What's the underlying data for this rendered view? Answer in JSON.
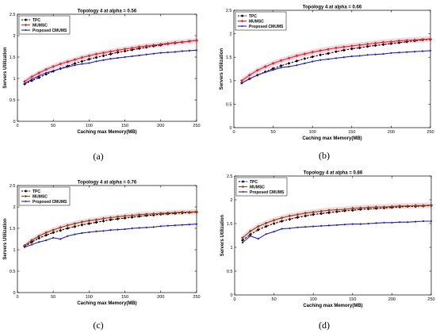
{
  "colors": {
    "TPC": "#000000",
    "MUMSC_red": "#e8202a",
    "MUMSC_brown": "#8b4513",
    "CMUMS": "#1f1fbf",
    "band": "#f2b8c6"
  },
  "chart_data": [
    {
      "type": "line",
      "title": "Topology 4 at alpha = 0.56",
      "xlabel": "Caching max Memory(MB)",
      "ylabel": "Servers Utilization",
      "caption": "(a)",
      "xlim": [
        0,
        250
      ],
      "ylim": [
        0,
        2.5
      ],
      "xticks": [
        0,
        50,
        100,
        150,
        200,
        250
      ],
      "yticks": [
        0,
        0.5,
        1,
        1.5,
        2,
        2.5
      ],
      "grid": false,
      "legend": "top-left",
      "x": [
        10,
        20,
        30,
        40,
        50,
        60,
        70,
        80,
        90,
        100,
        110,
        120,
        130,
        140,
        150,
        160,
        170,
        180,
        190,
        200,
        210,
        220,
        230,
        240,
        250
      ],
      "series": [
        {
          "name": "TPC",
          "color_key": "TPC",
          "marker": "diamond",
          "dashed": true,
          "values": [
            0.87,
            0.95,
            1.02,
            1.1,
            1.17,
            1.23,
            1.29,
            1.35,
            1.4,
            1.45,
            1.49,
            1.53,
            1.57,
            1.61,
            1.64,
            1.67,
            1.7,
            1.73,
            1.76,
            1.78,
            1.81,
            1.83,
            1.85,
            1.87,
            1.89
          ]
        },
        {
          "name": "MUMSC",
          "color_key": "MUMSC_red",
          "marker": "diamond",
          "dashed": false,
          "values": [
            0.93,
            1.04,
            1.13,
            1.21,
            1.28,
            1.34,
            1.39,
            1.44,
            1.49,
            1.53,
            1.57,
            1.6,
            1.63,
            1.66,
            1.69,
            1.71,
            1.74,
            1.76,
            1.78,
            1.8,
            1.82,
            1.84,
            1.85,
            1.87,
            1.89
          ]
        },
        {
          "name": "Proposed CMUMS",
          "color_key": "CMUMS",
          "marker": "dot",
          "dashed": false,
          "values": [
            0.88,
            0.98,
            1.06,
            1.13,
            1.18,
            1.23,
            1.27,
            1.31,
            1.34,
            1.36,
            1.4,
            1.43,
            1.46,
            1.48,
            1.5,
            1.52,
            1.54,
            1.56,
            1.58,
            1.6,
            1.61,
            1.62,
            1.64,
            1.65,
            1.66
          ]
        }
      ]
    },
    {
      "type": "line",
      "title": "Topology 4 at alpha = 0.66",
      "xlabel": "Caching max Memory(MB)",
      "ylabel": "Servers Utilization",
      "caption": "(b)",
      "xlim": [
        0,
        250
      ],
      "ylim": [
        0,
        2.5
      ],
      "xticks": [
        0,
        50,
        100,
        150,
        200,
        250
      ],
      "yticks": [
        0,
        0.5,
        1,
        1.5,
        2,
        2.5
      ],
      "grid": false,
      "legend": "top-left",
      "x": [
        10,
        20,
        30,
        40,
        50,
        60,
        70,
        80,
        90,
        100,
        110,
        120,
        130,
        140,
        150,
        160,
        170,
        180,
        190,
        200,
        210,
        220,
        230,
        240,
        250
      ],
      "series": [
        {
          "name": "TPC",
          "color_key": "TPC",
          "marker": "diamond",
          "dashed": true,
          "values": [
            0.95,
            1.04,
            1.12,
            1.19,
            1.26,
            1.32,
            1.37,
            1.42,
            1.47,
            1.51,
            1.55,
            1.58,
            1.62,
            1.65,
            1.68,
            1.7,
            1.73,
            1.75,
            1.77,
            1.79,
            1.81,
            1.83,
            1.85,
            1.87,
            1.88
          ]
        },
        {
          "name": "MUMSC",
          "color_key": "MUMSC_red",
          "marker": "diamond",
          "dashed": false,
          "values": [
            1.0,
            1.12,
            1.22,
            1.3,
            1.37,
            1.43,
            1.48,
            1.53,
            1.57,
            1.61,
            1.64,
            1.67,
            1.7,
            1.72,
            1.74,
            1.76,
            1.78,
            1.8,
            1.82,
            1.83,
            1.85,
            1.86,
            1.87,
            1.88,
            1.89
          ]
        },
        {
          "name": "Proposed CMUMS",
          "color_key": "CMUMS",
          "marker": "dot",
          "dashed": false,
          "values": [
            0.95,
            1.04,
            1.12,
            1.18,
            1.23,
            1.28,
            1.3,
            1.33,
            1.37,
            1.41,
            1.44,
            1.46,
            1.48,
            1.5,
            1.52,
            1.53,
            1.55,
            1.56,
            1.57,
            1.59,
            1.6,
            1.61,
            1.62,
            1.63,
            1.64
          ]
        }
      ]
    },
    {
      "type": "line",
      "title": "Topology 4 at alpha = 0.76",
      "xlabel": "Caching max Memory(MB)",
      "ylabel": "Servers Utilization",
      "caption": "(c)",
      "xlim": [
        0,
        250
      ],
      "ylim": [
        0,
        2.5
      ],
      "xticks": [
        0,
        50,
        100,
        150,
        200,
        250
      ],
      "yticks": [
        0,
        0.5,
        1,
        1.5,
        2,
        2.5
      ],
      "grid": false,
      "legend": "top-left",
      "x": [
        10,
        20,
        30,
        40,
        50,
        60,
        70,
        80,
        90,
        100,
        110,
        120,
        130,
        140,
        150,
        160,
        170,
        180,
        190,
        200,
        210,
        220,
        230,
        240,
        250
      ],
      "series": [
        {
          "name": "TPC",
          "color_key": "TPC",
          "marker": "diamond",
          "dashed": true,
          "values": [
            1.08,
            1.18,
            1.27,
            1.34,
            1.4,
            1.45,
            1.5,
            1.54,
            1.58,
            1.61,
            1.64,
            1.67,
            1.7,
            1.72,
            1.74,
            1.76,
            1.78,
            1.8,
            1.81,
            1.83,
            1.84,
            1.85,
            1.86,
            1.87,
            1.88
          ]
        },
        {
          "name": "MUMSC",
          "color_key": "MUMSC_brown",
          "marker": "diamond",
          "dashed": false,
          "values": [
            1.1,
            1.22,
            1.32,
            1.4,
            1.46,
            1.52,
            1.57,
            1.61,
            1.65,
            1.68,
            1.7,
            1.73,
            1.75,
            1.77,
            1.79,
            1.8,
            1.82,
            1.83,
            1.84,
            1.85,
            1.86,
            1.87,
            1.88,
            1.88,
            1.89
          ]
        },
        {
          "name": "Proposed CMUMS",
          "color_key": "CMUMS",
          "marker": "dot",
          "dashed": false,
          "values": [
            1.06,
            1.12,
            1.18,
            1.22,
            1.28,
            1.25,
            1.32,
            1.36,
            1.39,
            1.41,
            1.43,
            1.44,
            1.46,
            1.47,
            1.48,
            1.5,
            1.51,
            1.52,
            1.53,
            1.55,
            1.56,
            1.57,
            1.58,
            1.59,
            1.6
          ]
        }
      ]
    },
    {
      "type": "line",
      "title": "Topology 4 at alpha = 0.86",
      "xlabel": "Caching max Memory(MB)",
      "ylabel": "Servers Utilization",
      "caption": "(d)",
      "xlim": [
        0,
        250
      ],
      "ylim": [
        0,
        2.5
      ],
      "xticks": [
        0,
        50,
        100,
        150,
        200,
        250
      ],
      "yticks": [
        0,
        0.5,
        1,
        1.5,
        2,
        2.5
      ],
      "grid": false,
      "legend": "top-left",
      "x": [
        10,
        20,
        30,
        40,
        50,
        60,
        70,
        80,
        90,
        100,
        110,
        120,
        130,
        140,
        150,
        160,
        170,
        180,
        190,
        200,
        210,
        220,
        230,
        240,
        250
      ],
      "series": [
        {
          "name": "TPC",
          "color_key": "TPC",
          "marker": "diamond",
          "dashed": true,
          "values": [
            1.15,
            1.27,
            1.37,
            1.44,
            1.5,
            1.55,
            1.59,
            1.63,
            1.66,
            1.69,
            1.71,
            1.73,
            1.75,
            1.77,
            1.78,
            1.8,
            1.81,
            1.82,
            1.83,
            1.84,
            1.85,
            1.86,
            1.86,
            1.87,
            1.88
          ]
        },
        {
          "name": "MUMSC",
          "color_key": "MUMSC_brown",
          "marker": "diamond",
          "dashed": false,
          "values": [
            1.2,
            1.34,
            1.44,
            1.51,
            1.57,
            1.62,
            1.66,
            1.69,
            1.72,
            1.74,
            1.76,
            1.78,
            1.79,
            1.8,
            1.82,
            1.83,
            1.84,
            1.85,
            1.85,
            1.86,
            1.87,
            1.87,
            1.88,
            1.88,
            1.89
          ]
        },
        {
          "name": "Proposed CMUMS",
          "color_key": "CMUMS",
          "marker": "dot",
          "dashed": false,
          "values": [
            1.1,
            1.24,
            1.18,
            1.28,
            1.33,
            1.39,
            1.4,
            1.42,
            1.43,
            1.44,
            1.45,
            1.46,
            1.47,
            1.48,
            1.49,
            1.49,
            1.5,
            1.51,
            1.52,
            1.52,
            1.53,
            1.53,
            1.54,
            1.55,
            1.55
          ]
        }
      ]
    }
  ]
}
